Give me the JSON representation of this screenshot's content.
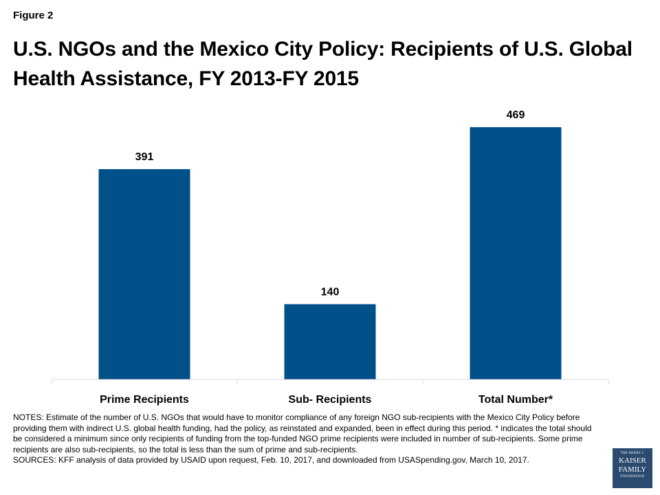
{
  "figure_label": "Figure 2",
  "title": "U.S. NGOs and the Mexico City Policy: Recipients of U.S. Global Health Assistance, FY 2013-FY 2015",
  "chart_data": {
    "type": "bar",
    "categories": [
      "Prime Recipients",
      "Sub- Recipients",
      "Total Number*"
    ],
    "values": [
      391,
      140,
      469
    ],
    "ylim": [
      0,
      500
    ],
    "grid": false,
    "bar_color": "#00508a",
    "data_labels": [
      "391",
      "140",
      "469"
    ]
  },
  "notes": {
    "notes_text": "NOTES: Estimate of the number of U.S. NGOs that would have to monitor compliance of any foreign NGO sub-recipients with the Mexico City Policy before providing them with indirect U.S. global health funding, had the policy, as reinstated and expanded, been in effect during this period. * indicates the total should be considered a minimum since only recipients of funding from the top-funded NGO prime recipients were included in number of sub-recipients. Some prime recipients are also sub-recipients, so the total is less than the sum of prime and sub-recipients.",
    "sources_text": "SOURCES: KFF analysis of data provided by USAID upon request, Feb. 10, 2017, and downloaded from USASpending.gov, March 10, 2017."
  },
  "logo": {
    "line1": "THE HENRY J.",
    "line2": "KAISER",
    "line3": "FAMILY",
    "line4": "FOUNDATION"
  }
}
